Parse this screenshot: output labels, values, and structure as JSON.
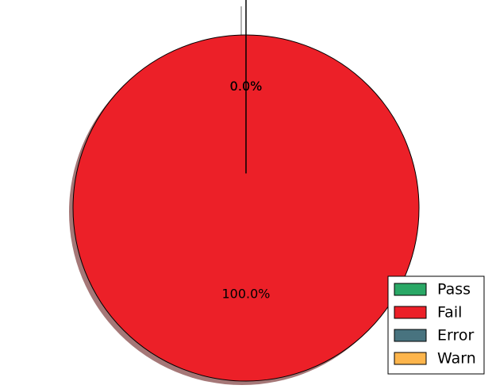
{
  "chart_data": {
    "type": "pie",
    "slices": [
      {
        "label": "Pass",
        "value": 0,
        "pct_label": "0.0%",
        "color": "#2aa866"
      },
      {
        "label": "Fail",
        "value": 100,
        "pct_label": "100.0%",
        "color": "#ec2028"
      },
      {
        "label": "Error",
        "value": 0,
        "pct_label": "0.0%",
        "color": "#48737f"
      },
      {
        "label": "Warn",
        "value": 0,
        "pct_label": "0.0%",
        "color": "#fdb54c"
      }
    ],
    "shadow": true,
    "legend": "lower-right",
    "title": ""
  }
}
